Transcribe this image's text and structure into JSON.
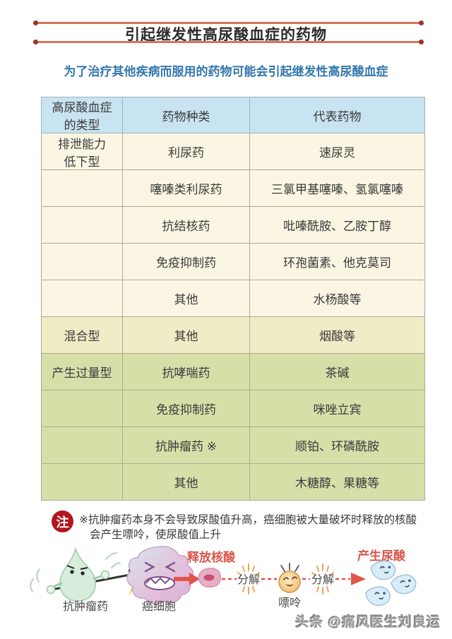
{
  "page": {
    "title": "引起继发性高尿酸血症的药物",
    "subtitle": "为了治疗其他疾病而服用的药物可能会引起继发性高尿酸血症",
    "watermark": "头条 @痛风医生刘良运"
  },
  "colors": {
    "accent_line": "#d5755f",
    "accent_dot": "#9c3227",
    "subtitle_blue": "#3377ad",
    "header_bg": "#c8e3f1",
    "cream_bg": "#faf6e3",
    "yellow_bg": "#f0ecc6",
    "green_bg": "#d7dfa9",
    "note_red": "#b2151e",
    "arrow_red": "#e2544a"
  },
  "table": {
    "headers": [
      "高尿酸血症\n的类型",
      "药物种类",
      "代表药物"
    ],
    "rows": [
      {
        "type": "排泄能力\n低下型",
        "drug_class": "利尿药",
        "examples": "速尿灵",
        "group": "cream"
      },
      {
        "type": "",
        "drug_class": "噻嗪类利尿药",
        "examples": "三氯甲基噻嗪、氢氯噻嗪",
        "group": "cream"
      },
      {
        "type": "",
        "drug_class": "抗结核药",
        "examples": "吡嗪酰胺、乙胺丁醇",
        "group": "cream"
      },
      {
        "type": "",
        "drug_class": "免疫抑制药",
        "examples": "环孢菌素、他克莫司",
        "group": "cream"
      },
      {
        "type": "",
        "drug_class": "其他",
        "examples": "水杨酸等",
        "group": "cream"
      },
      {
        "type": "混合型",
        "drug_class": "其他",
        "examples": "烟酸等",
        "group": "yellow"
      },
      {
        "type": "产生过量型",
        "drug_class": "抗哮喘药",
        "examples": "茶碱",
        "group": "green"
      },
      {
        "type": "",
        "drug_class": "免疫抑制药",
        "examples": "咪唑立宾",
        "group": "green"
      },
      {
        "type": "",
        "drug_class": "抗肿瘤药 ※",
        "examples": "顺铂、环磷酰胺",
        "group": "green"
      },
      {
        "type": "",
        "drug_class": "其他",
        "examples": "木糖醇、果糖等",
        "group": "green"
      }
    ]
  },
  "note": {
    "badge": "注",
    "line1": "※抗肿瘤药本身不会导致尿酸值升高，癌细胞被大量破坏时释放的核酸",
    "line2": "会产生嘌呤，使尿酸值上升"
  },
  "illustration": {
    "labels": {
      "drug": "抗肿瘤药",
      "cancer_cell": "癌细胞",
      "release": "释放核酸",
      "decompose1": "分解",
      "purine": "嘌呤",
      "decompose2": "分解",
      "produce": "产生尿酸"
    }
  }
}
